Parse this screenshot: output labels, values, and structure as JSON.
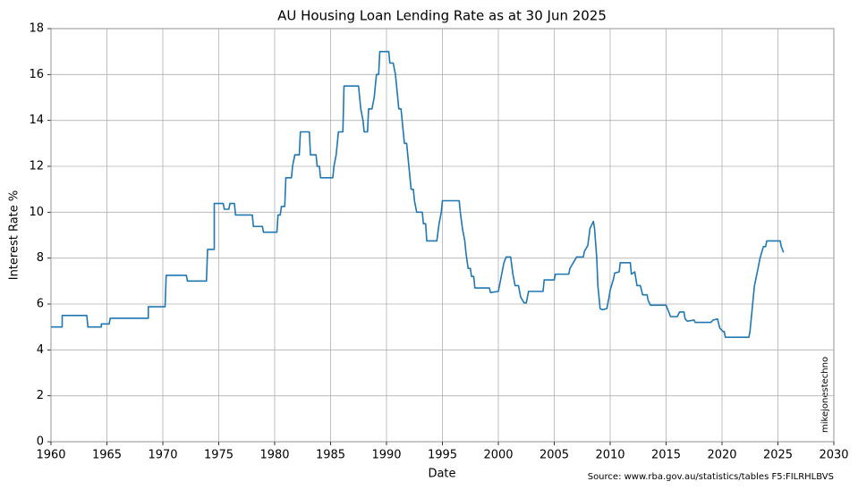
{
  "chart_data": {
    "type": "line",
    "title": "AU Housing Loan Lending Rate as at 30 Jun 2025",
    "x_label": "Date",
    "y_label": "Interest Rate %",
    "source": "Source: www.rba.gov.au/statistics/tables F5:FILRHLBVS",
    "watermark": "mikejonestechno",
    "xlim": [
      1960,
      2030
    ],
    "xticks": [
      1960,
      1965,
      1970,
      1975,
      1980,
      1985,
      1990,
      1995,
      2000,
      2005,
      2010,
      2015,
      2020,
      2025,
      2030
    ],
    "ylim": [
      0,
      18
    ],
    "yticks": [
      0,
      2,
      4,
      6,
      8,
      10,
      12,
      14,
      16,
      18
    ],
    "grid": true,
    "series": [
      {
        "name": "Interest Rate %",
        "color": "#1f77b4",
        "x": [
          1960,
          1961,
          1961,
          1963.2,
          1963.3,
          1964.5,
          1964.5,
          1965.2,
          1965.3,
          1968.7,
          1968.7,
          1970.2,
          1970.3,
          1972.1,
          1972.2,
          1973.9,
          1974.0,
          1974.6,
          1974.6,
          1975.4,
          1975.5,
          1975.9,
          1976.0,
          1976.4,
          1976.5,
          1978.0,
          1978.1,
          1978.9,
          1979.0,
          1980.2,
          1980.3,
          1980.5,
          1980.6,
          1980.9,
          1981.0,
          1981.5,
          1981.6,
          1981.8,
          1982.2,
          1982.3,
          1983.1,
          1983.2,
          1983.7,
          1983.8,
          1984.0,
          1984.1,
          1985.2,
          1985.3,
          1985.5,
          1985.7,
          1986.1,
          1986.2,
          1987.5,
          1987.7,
          1987.9,
          1988.0,
          1988.3,
          1988.4,
          1988.7,
          1988.9,
          1989.1,
          1989.3,
          1989.4,
          1990.2,
          1990.3,
          1990.6,
          1990.8,
          1991.0,
          1991.1,
          1991.3,
          1991.5,
          1991.6,
          1991.8,
          1992.0,
          1992.2,
          1992.4,
          1992.5,
          1992.7,
          1993.2,
          1993.3,
          1993.5,
          1993.6,
          1994.5,
          1994.7,
          1994.9,
          1995.0,
          1995.4,
          1996.5,
          1996.6,
          1996.8,
          1997.0,
          1997.1,
          1997.3,
          1997.5,
          1997.6,
          1997.8,
          1997.9,
          1999.2,
          1999.3,
          2000.0,
          2000.1,
          2000.3,
          2000.5,
          2000.7,
          2001.1,
          2001.3,
          2001.5,
          2001.8,
          2002.0,
          2002.3,
          2002.5,
          2002.7,
          2004.0,
          2004.1,
          2005.0,
          2005.1,
          2006.3,
          2006.4,
          2006.7,
          2007.0,
          2007.6,
          2007.7,
          2008.0,
          2008.2,
          2008.5,
          2008.6,
          2008.8,
          2008.9,
          2009.1,
          2009.3,
          2009.7,
          2009.9,
          2010.0,
          2010.3,
          2010.4,
          2010.8,
          2010.9,
          2011.8,
          2011.9,
          2012.2,
          2012.4,
          2012.7,
          2012.9,
          2013.3,
          2013.4,
          2013.6,
          2015.0,
          2015.2,
          2015.4,
          2016.0,
          2016.2,
          2016.6,
          2016.7,
          2016.9,
          2017.5,
          2017.6,
          2019.0,
          2019.2,
          2019.6,
          2019.8,
          2020.1,
          2020.2,
          2020.3,
          2022.4,
          2022.5,
          2022.7,
          2022.9,
          2023.2,
          2023.4,
          2023.7,
          2023.9,
          2024.0,
          2025.2,
          2025.3,
          2025.5
        ],
        "values": [
          5.0,
          5.0,
          5.5,
          5.5,
          5.0,
          5.0,
          5.13,
          5.13,
          5.38,
          5.38,
          5.88,
          5.88,
          7.25,
          7.25,
          7.0,
          7.0,
          8.38,
          8.38,
          10.38,
          10.38,
          10.13,
          10.13,
          10.38,
          10.38,
          9.88,
          9.88,
          9.38,
          9.38,
          9.13,
          9.13,
          9.88,
          9.88,
          10.25,
          10.25,
          11.5,
          11.5,
          12.0,
          12.5,
          12.5,
          13.5,
          13.5,
          12.5,
          12.5,
          12.0,
          12.0,
          11.5,
          11.5,
          12.0,
          12.5,
          13.5,
          13.5,
          15.5,
          15.5,
          14.5,
          14.0,
          13.5,
          13.5,
          14.5,
          14.5,
          15.0,
          16.0,
          16.0,
          17.0,
          17.0,
          16.5,
          16.5,
          16.0,
          15.0,
          14.5,
          14.5,
          13.5,
          13.0,
          13.0,
          12.0,
          11.0,
          11.0,
          10.5,
          10.0,
          10.0,
          9.5,
          9.5,
          8.75,
          8.75,
          9.5,
          10.0,
          10.5,
          10.5,
          10.5,
          10.0,
          9.25,
          8.75,
          8.25,
          7.55,
          7.55,
          7.2,
          7.2,
          6.7,
          6.7,
          6.5,
          6.55,
          6.8,
          7.3,
          7.8,
          8.05,
          8.05,
          7.3,
          6.8,
          6.8,
          6.3,
          6.05,
          6.05,
          6.55,
          6.55,
          7.05,
          7.05,
          7.3,
          7.3,
          7.55,
          7.8,
          8.05,
          8.05,
          8.3,
          8.55,
          9.3,
          9.6,
          9.3,
          8.0,
          6.8,
          5.8,
          5.75,
          5.8,
          6.3,
          6.6,
          7.1,
          7.35,
          7.4,
          7.8,
          7.8,
          7.3,
          7.4,
          6.8,
          6.8,
          6.4,
          6.4,
          6.15,
          5.95,
          5.95,
          5.7,
          5.45,
          5.45,
          5.65,
          5.65,
          5.35,
          5.25,
          5.3,
          5.2,
          5.2,
          5.3,
          5.35,
          4.95,
          4.8,
          4.8,
          4.55,
          4.55,
          4.8,
          5.8,
          6.8,
          7.5,
          8.0,
          8.5,
          8.5,
          8.75,
          8.75,
          8.5,
          8.25
        ]
      }
    ]
  }
}
